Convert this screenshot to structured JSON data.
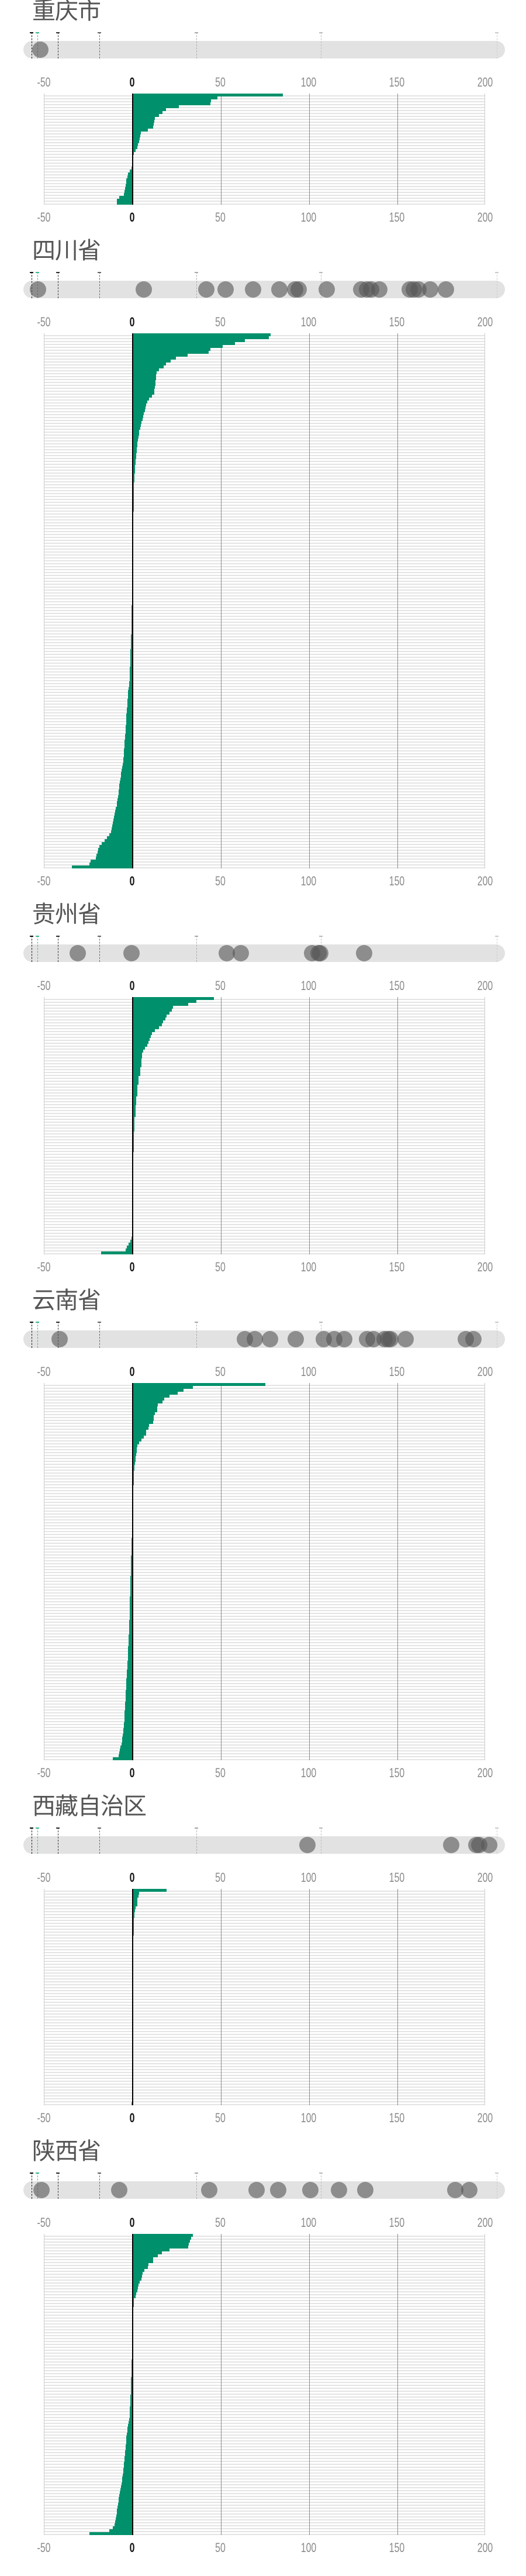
{
  "chart_data": {
    "type": "bar",
    "orientation": "horizontal",
    "xlim": [
      -50,
      200
    ],
    "x_ticks": [
      "-50",
      "0",
      "50",
      "100",
      "150",
      "200"
    ],
    "grid": true,
    "colors": {
      "bar": "#00906b",
      "zero_line": "#000000",
      "dot": "#555555",
      "strip": "#e2e2e2",
      "title": "#555555"
    },
    "strip_marker_colors": [
      "#111111",
      "#3cb98a",
      "#333333",
      "#666666",
      "#aaaaaa",
      "#bbbbbb",
      "#cccccc"
    ],
    "strip_marker_positions_pct": [
      1.7,
      2.9,
      7.2,
      15.8,
      35.9,
      61.8,
      98.3
    ],
    "panels": [
      {
        "title": "重庆市",
        "strip_dots_pct": [
          3.5
        ],
        "values": [
          85,
          48,
          44.5,
          44,
          26,
          19,
          17,
          15,
          12.5,
          12.3,
          12,
          11.5,
          8.5,
          4.5,
          4.3,
          4,
          3.6,
          3,
          2.5,
          1.5,
          0.5,
          0.3,
          0.2,
          -0.2,
          -0.3,
          -0.5,
          -1.5,
          -2.5,
          -3,
          -3.5,
          -3.8,
          -4,
          -4.3,
          -4.5,
          -5,
          -7.5,
          -9,
          -9
        ]
      },
      {
        "title": "四川省",
        "strip_dots_pct": [
          3.0,
          25.0,
          38.0,
          42.0,
          47.7,
          53.2,
          56.4,
          57.1,
          63.0,
          70.1,
          71.3,
          72.2,
          73.9,
          80.2,
          81.1,
          82.0,
          84.5,
          87.7
        ],
        "values": [
          78,
          77,
          63.6,
          58,
          51,
          44,
          43,
          31,
          24.5,
          21.6,
          18.8,
          17.6,
          15,
          13.6,
          13.4,
          13.2,
          13,
          12.8,
          12.5,
          12.4,
          12.2,
          11,
          9.2,
          8.4,
          7.7,
          7.2,
          6.8,
          6.3,
          5.9,
          5.5,
          5,
          4.6,
          4.2,
          3.8,
          3.5,
          3.2,
          2.9,
          2.7,
          2.5,
          2.4,
          2.3,
          2.1,
          1.9,
          1.7,
          1.5,
          1.4,
          1.3,
          1.2,
          1.1,
          1,
          0.9,
          0.8,
          0.7,
          0.6,
          0.6,
          0.6,
          0.6,
          0.5,
          0.5,
          0.5,
          0.5,
          0.4,
          0.4,
          0.4,
          0.3,
          0.3,
          0.3,
          0.3,
          0.3,
          0.2,
          0.2,
          0.2,
          0.2,
          0.2,
          0.2,
          0.1,
          0.1,
          0.1,
          0.1,
          0.1,
          0.1,
          0.1,
          0.1,
          0.05,
          0.05,
          0.05,
          0,
          0,
          -0.1,
          -0.2,
          -0.3,
          -0.4,
          -0.4,
          -0.5,
          -0.5,
          -0.5,
          -0.5,
          -0.6,
          -0.6,
          -0.7,
          -0.7,
          -0.8,
          -0.8,
          -0.9,
          -0.9,
          -1,
          -1.1,
          -1.1,
          -1.2,
          -1.2,
          -1.3,
          -1.3,
          -1.4,
          -1.4,
          -1.5,
          -1.5,
          -1.6,
          -1.7,
          -1.7,
          -1.9,
          -2.1,
          -2.3,
          -2.5,
          -2.7,
          -2.8,
          -2.9,
          -3,
          -3.1,
          -3.3,
          -3.4,
          -3.5,
          -3.6,
          -3.7,
          -3.8,
          -3.9,
          -4,
          -4.1,
          -4.2,
          -4.3,
          -4.5,
          -4.6,
          -4.8,
          -4.9,
          -5,
          -5.1,
          -5.2,
          -5.4,
          -5.7,
          -6,
          -6.2,
          -6.5,
          -6.7,
          -7,
          -7.2,
          -7.5,
          -7.7,
          -7.9,
          -8,
          -8.3,
          -8.6,
          -8.8,
          -9,
          -9.5,
          -10,
          -10.3,
          -10.6,
          -11,
          -11.3,
          -11.7,
          -12,
          -12.3,
          -13.2,
          -14.5,
          -16,
          -17.5,
          -19,
          -19.5,
          -20,
          -20.5,
          -21,
          -23.8,
          -24.5,
          -34.5
        ]
      },
      {
        "title": "贵州省",
        "strip_dots_pct": [
          11.3,
          22.5,
          42.2,
          45.1,
          59.9,
          61.3,
          61.7,
          70.8
        ],
        "values": [
          46,
          36,
          31.4,
          23,
          22.2,
          20.7,
          19.3,
          18.4,
          17.2,
          16.5,
          15,
          12.5,
          11,
          10.3,
          9.6,
          8.8,
          8.4,
          6.9,
          6.1,
          5.4,
          5.4,
          5,
          5,
          5,
          4.2,
          4.2,
          4.2,
          3.4,
          3.4,
          3.4,
          2.7,
          2.7,
          2.7,
          2.7,
          2.1,
          2.1,
          2.1,
          1.5,
          1.5,
          1.5,
          1.5,
          1.1,
          1.1,
          1.1,
          1.1,
          1.1,
          0.8,
          0.8,
          0.8,
          0.8,
          0.8,
          0.8,
          0.8,
          0.4,
          0.4,
          0.4,
          0.4,
          0.4,
          0.4,
          0.4,
          0.4,
          0.2,
          0.2,
          0.2,
          0.2,
          0.2,
          0.2,
          0.2,
          0.2,
          0.2,
          0.2,
          0.1,
          0.1,
          0.1,
          0.1,
          0.05,
          0.05,
          0,
          0,
          -0.1,
          -0.2,
          -0.4,
          -0.8,
          -1.4,
          -2.2,
          -3.3,
          -3.9,
          -18
        ]
      },
      {
        "title": "云南省",
        "strip_dots_pct": [
          7.5,
          46.0,
          48.0,
          51.2,
          56.6,
          62.4,
          64.6,
          66.6,
          71.3,
          72.7,
          75.0,
          75.7,
          76.2,
          79.4,
          91.9,
          93.4
        ],
        "values": [
          75,
          34,
          28.7,
          25.5,
          20.7,
          17.8,
          16.9,
          14.2,
          14,
          14,
          12.5,
          12,
          12,
          11.7,
          9.4,
          8.9,
          7.6,
          7.6,
          6.3,
          5,
          3.8,
          2.6,
          2.4,
          2.2,
          1.9,
          1.7,
          1.5,
          1.3,
          1.1,
          0.9,
          0.8,
          0.6,
          0.6,
          0.5,
          0.5,
          0.4,
          0.4,
          0.3,
          0.3,
          0.3,
          0.3,
          0.3,
          0.2,
          0.2,
          0.2,
          0.1,
          0.1,
          0.05,
          0,
          -0.1,
          -0.2,
          -0.3,
          -0.4,
          -0.5,
          -0.6,
          -0.7,
          -0.7,
          -0.8,
          -0.8,
          -0.9,
          -0.9,
          -1,
          -1,
          -1,
          -1.1,
          -1.1,
          -1.2,
          -1.2,
          -1.3,
          -1.3,
          -1.3,
          -1.4,
          -1.4,
          -1.5,
          -1.5,
          -1.6,
          -1.6,
          -1.7,
          -1.7,
          -1.8,
          -1.8,
          -1.9,
          -1.9,
          -2,
          -2,
          -2.1,
          -2.2,
          -2.2,
          -2.3,
          -2.4,
          -2.5,
          -2.6,
          -2.7,
          -2.8,
          -2.8,
          -2.9,
          -3,
          -3.1,
          -3.2,
          -3.3,
          -3.4,
          -3.5,
          -3.6,
          -3.7,
          -3.8,
          -3.9,
          -4,
          -4.1,
          -4.1,
          -4.2,
          -4.3,
          -4.4,
          -4.5,
          -4.6,
          -4.7,
          -4.8,
          -4.9,
          -5,
          -5.2,
          -5.4,
          -5.6,
          -5.8,
          -5.9,
          -6.3,
          -6.8,
          -7.2,
          -7.5,
          -7.8,
          -11.1
        ]
      },
      {
        "title": "西藏自治区",
        "strip_dots_pct": [
          59.0,
          88.8,
          94.0,
          94.6,
          96.7
        ],
        "values": [
          19.3,
          3.8,
          3.4,
          2.8,
          2.6,
          2.5,
          1.5,
          1.3,
          1.1,
          0.9,
          0.7,
          0.7,
          0.6,
          0.6,
          0.5,
          0.5,
          0.4,
          0.4,
          0.3,
          0.3,
          0.3,
          0.2,
          0.2,
          0.2,
          0.2,
          0.2,
          0.2,
          0.2,
          0.2,
          0.2,
          0.2,
          0.2,
          0.2,
          0.1,
          0.1,
          0.1,
          0.1,
          0.1,
          0.1,
          0.1,
          0.1,
          0.1,
          0.1,
          0.1,
          0.1,
          0.1,
          0.1,
          0.1,
          0.1,
          0.1,
          0.1,
          0.1,
          0.1,
          0.05,
          0.05,
          0.05,
          0.05,
          0.05,
          0.05,
          0.05,
          0.05,
          0.05,
          0.05,
          0,
          0,
          0,
          0,
          0,
          0,
          0,
          0,
          0,
          0,
          -0.5
        ]
      },
      {
        "title": "陕西省",
        "strip_dots_pct": [
          3.8,
          19.9,
          38.6,
          48.4,
          52.9,
          59.6,
          65.5,
          71.0,
          89.7,
          92.6
        ],
        "values": [
          34,
          33,
          32.5,
          31.8,
          31.6,
          21,
          16.5,
          14.2,
          11.7,
          11.5,
          8.8,
          8.6,
          6.7,
          5.7,
          5.4,
          5,
          4,
          3.4,
          2.9,
          2.5,
          1.9,
          1.5,
          0.8,
          0.6,
          0.5,
          0.4,
          0.3,
          0.2,
          0.1,
          0.05,
          0,
          -0.05,
          -0.1,
          -0.1,
          -0.15,
          -0.2,
          -0.2,
          -0.25,
          -0.3,
          -0.3,
          -0.35,
          -0.4,
          -0.45,
          -0.5,
          -0.55,
          -0.6,
          -0.65,
          -0.7,
          -0.8,
          -0.85,
          -0.9,
          -0.95,
          -1,
          -1.05,
          -1.1,
          -1.2,
          -1.3,
          -1.35,
          -1.4,
          -1.5,
          -1.6,
          -1.7,
          -1.8,
          -2,
          -2.2,
          -2.6,
          -2.9,
          -3.1,
          -3.3,
          -3.5,
          -3.6,
          -3.8,
          -3.9,
          -4.1,
          -4.2,
          -4.4,
          -4.6,
          -4.8,
          -4.9,
          -5.1,
          -5.2,
          -5.4,
          -5.6,
          -5.9,
          -6.1,
          -6.3,
          -6.6,
          -6.9,
          -7.2,
          -7.5,
          -7.8,
          -8.1,
          -8.4,
          -8.6,
          -8.8,
          -9.1,
          -9.4,
          -9.7,
          -10,
          -10.2,
          -11.4,
          -13.2,
          -24.4
        ]
      }
    ]
  }
}
